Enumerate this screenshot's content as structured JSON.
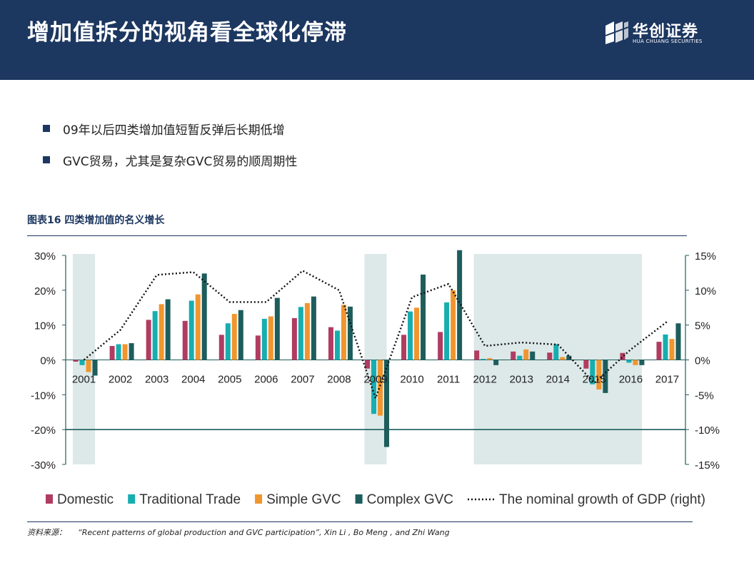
{
  "header": {
    "title": "增加值拆分的视角看全球化停滞",
    "logo_cn": "华创证券",
    "logo_en": "HUA CHUANG SECURITIES"
  },
  "bullets": [
    "09年以后四类增加值短暂反弹后长期低增",
    "GVC贸易，尤其是复杂GVC贸易的顺周期性"
  ],
  "figure": {
    "title": "图表16  四类增加值的名义增长"
  },
  "source": {
    "label": "资料来源：",
    "text": "“Recent patterns of global production and GVC participation”, Xin Li , Bo Meng , and Zhi Wang"
  },
  "colors": {
    "header_bg": "#1c3760",
    "domestic": "#b03c62",
    "traditional": "#17aeb0",
    "simple": "#f0962e",
    "complex": "#1d5d5c",
    "recession_shade": "#dde8e8",
    "axis": "#1d5d5c"
  },
  "chart_data": {
    "type": "bar",
    "categories": [
      "2001",
      "2002",
      "2003",
      "2004",
      "2005",
      "2006",
      "2007",
      "2008",
      "2009",
      "2010",
      "2011",
      "2012",
      "2013",
      "2014",
      "2015",
      "2016",
      "2017"
    ],
    "series": [
      {
        "name": "Domestic",
        "axis": "left",
        "values": [
          -0.5,
          4.0,
          11.5,
          11.2,
          7.2,
          7.0,
          12.0,
          9.4,
          -2.5,
          7.2,
          8.0,
          2.7,
          2.4,
          2.1,
          -2.5,
          2.0,
          5.2
        ]
      },
      {
        "name": "Traditional Trade",
        "axis": "left",
        "values": [
          -1.5,
          4.5,
          14.0,
          17.0,
          10.5,
          11.8,
          15.2,
          8.4,
          -15.5,
          13.9,
          16.5,
          0.3,
          1.2,
          4.5,
          -7.0,
          -0.8,
          7.3
        ]
      },
      {
        "name": "Simple GVC",
        "axis": "left",
        "values": [
          -3.5,
          4.5,
          16.0,
          18.8,
          13.2,
          12.5,
          16.3,
          15.8,
          -16.0,
          15.0,
          20.0,
          0.5,
          3.0,
          0.8,
          -8.5,
          -1.5,
          6.0
        ]
      },
      {
        "name": "Complex GVC",
        "axis": "left",
        "values": [
          -4.5,
          4.8,
          17.4,
          24.8,
          14.3,
          17.8,
          18.2,
          15.3,
          -25.0,
          24.5,
          31.5,
          -1.5,
          2.4,
          1.2,
          -9.5,
          -1.5,
          10.5
        ]
      }
    ],
    "line": {
      "name": "The nominal growth of GDP (right)",
      "axis": "right",
      "values": [
        0.0,
        4.3,
        12.2,
        12.6,
        8.3,
        8.3,
        12.8,
        10.0,
        -5.5,
        9.0,
        10.9,
        2.0,
        2.5,
        2.2,
        -3.3,
        1.5,
        5.5
      ]
    },
    "shaded_periods": [
      [
        "2001",
        "2001"
      ],
      [
        "2009",
        "2009"
      ],
      [
        "2012",
        "2016"
      ]
    ],
    "ylim": [
      -30,
      30
    ],
    "ylim_right": [
      -15,
      15
    ],
    "yticks": [
      "30%",
      "20%",
      "10%",
      "0%",
      "-10%",
      "-20%",
      "-30%"
    ],
    "yticks_right": [
      "15%",
      "10%",
      "5%",
      "0%",
      "-5%",
      "-10%",
      "-15%"
    ],
    "xlabel": "",
    "ylabel": "",
    "legend_position": "bottom"
  }
}
